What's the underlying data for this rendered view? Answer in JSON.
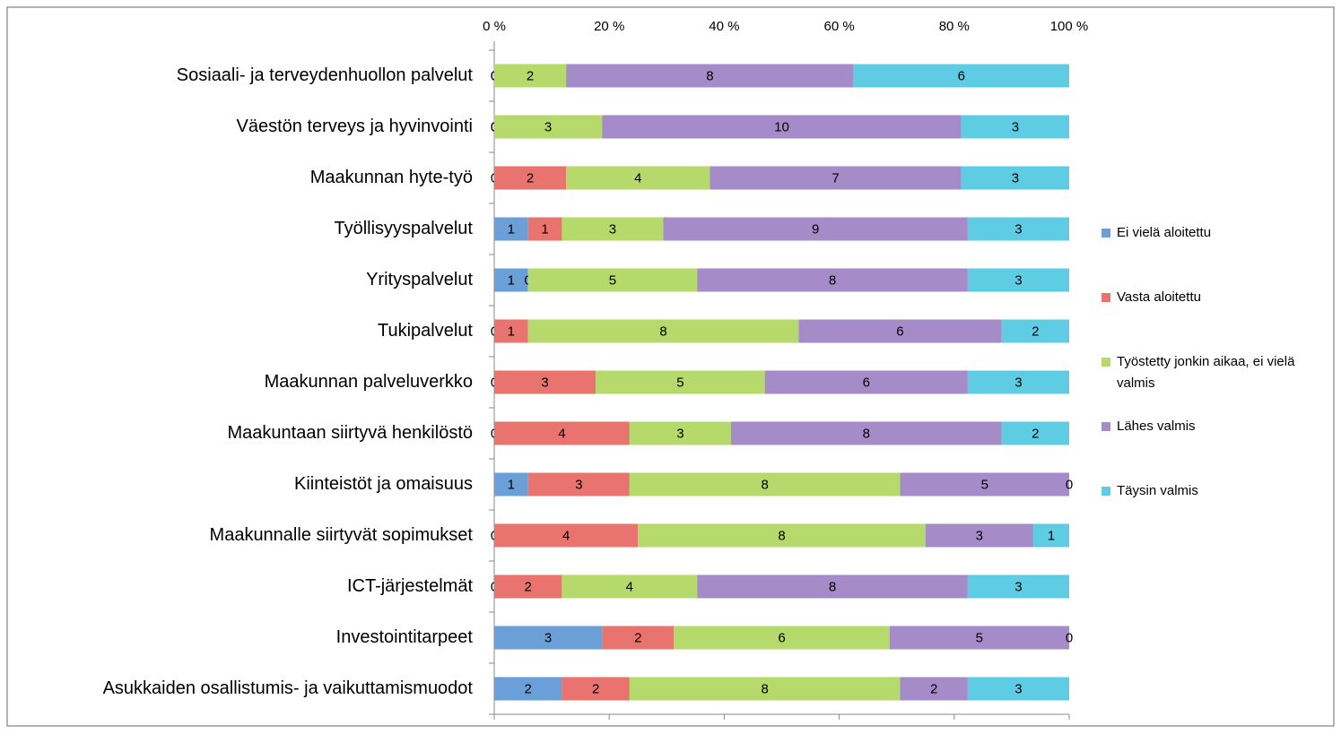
{
  "chart_data": {
    "type": "bar",
    "orientation": "horizontal",
    "stacked": "percent",
    "categories": [
      "Sosiaali- ja terveydenhuollon palvelut",
      "Väestön terveys ja hyvinvointi",
      "Maakunnan hyte-työ",
      "Työllisyyspalvelut",
      "Yrityspalvelut",
      "Tukipalvelut",
      "Maakunnan palveluverkko",
      "Maakuntaan siirtyvä henkilöstö",
      "Kiinteistöt ja omaisuus",
      "Maakunnalle siirtyvät sopimukset",
      "ICT-järjestelmät",
      "Investointitarpeet",
      "Asukkaiden osallistumis- ja vaikuttamismuodot"
    ],
    "series": [
      {
        "name": "Ei vielä aloitettu",
        "color": "#6a9fd8",
        "values": [
          0,
          0,
          0,
          1,
          1,
          0,
          0,
          0,
          1,
          0,
          0,
          3,
          2
        ]
      },
      {
        "name": "Vasta aloitettu",
        "color": "#e8736f",
        "values": [
          0,
          0,
          2,
          1,
          0,
          1,
          3,
          4,
          3,
          4,
          2,
          2,
          2
        ]
      },
      {
        "name": "Työstetty jonkin aikaa, ei vielä valmis",
        "color": "#b6d96c",
        "values": [
          2,
          3,
          4,
          3,
          5,
          8,
          5,
          3,
          8,
          8,
          4,
          6,
          8
        ]
      },
      {
        "name": "Lähes valmis",
        "color": "#a68bc9",
        "values": [
          8,
          10,
          7,
          9,
          8,
          6,
          6,
          8,
          5,
          3,
          8,
          5,
          2
        ]
      },
      {
        "name": "Täysin valmis",
        "color": "#5ecde3",
        "values": [
          6,
          3,
          3,
          3,
          3,
          2,
          3,
          2,
          0,
          1,
          3,
          0,
          3
        ]
      }
    ],
    "xlim": [
      0,
      100
    ],
    "xticks": [
      {
        "value": 0,
        "label": "0 %"
      },
      {
        "value": 20,
        "label": "20 %"
      },
      {
        "value": 40,
        "label": "40 %"
      },
      {
        "value": 60,
        "label": "60 %"
      },
      {
        "value": 80,
        "label": "80 %"
      },
      {
        "value": 100,
        "label": "100 %"
      }
    ],
    "legend": "right"
  }
}
